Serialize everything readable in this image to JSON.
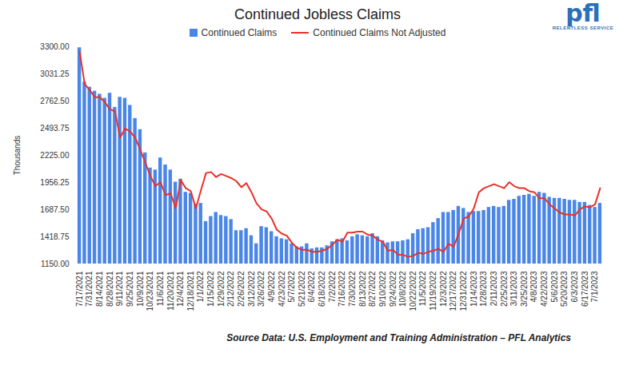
{
  "chart_data": {
    "type": "bar",
    "title": "Continued Jobless Claims",
    "y_label": "Thousands",
    "caption": "Source Data: U.S. Employment and Training Administration – PFL Analytics",
    "logo": "pfl",
    "logo_tagline": "RELENTLESS SERVICE",
    "legend": "top",
    "grid": false,
    "categories": [
      "7/17/2021",
      null,
      "7/31/2021",
      null,
      "8/14/2021",
      null,
      "8/28/2021",
      null,
      "9/11/2021",
      null,
      "9/25/2021",
      null,
      "10/9/2021",
      null,
      "10/23/2021",
      null,
      "11/6/2021",
      null,
      "11/20/2021",
      null,
      "12/4/2021",
      null,
      "12/18/2021",
      null,
      "1/1/2022",
      null,
      "1/15/2022",
      null,
      "1/29/2022",
      null,
      "2/12/2022",
      null,
      "2/26/2022",
      null,
      "3/12/2022",
      null,
      "3/26/2022",
      null,
      "4/9/2022",
      null,
      "4/23/2022",
      null,
      "5/7/2022",
      null,
      "5/21/2022",
      null,
      "6/4/2022",
      null,
      "6/18/2022",
      null,
      "7/2/2022",
      null,
      "7/16/2022",
      null,
      "7/30/2022",
      null,
      "8/13/2022",
      null,
      "8/27/2022",
      null,
      "9/10/2022",
      null,
      "9/24/2022",
      null,
      "10/8/2022",
      null,
      "10/22/2022",
      null,
      "11/5/2022",
      null,
      "11/19/2022",
      null,
      "12/3/2022",
      null,
      "12/17/2022",
      null,
      "12/31/2022",
      null,
      "1/14/2023",
      null,
      "1/28/2023",
      null,
      "2/11/2023",
      null,
      "2/25/2023",
      null,
      "3/11/2023",
      null,
      "3/25/2023",
      null,
      "4/8/2023",
      null,
      "4/22/2023",
      null,
      "5/6/2023",
      null,
      "5/20/2023",
      null,
      "6/3/2023",
      null,
      "6/17/2023",
      null,
      "7/1/2023",
      null
    ],
    "series": [
      {
        "name": "Continued Claims",
        "color": "#4a86e8",
        "type": "bar",
        "values": [
          3290,
          2950,
          2900,
          2860,
          2830,
          2790,
          2840,
          2700,
          2800,
          2790,
          2720,
          2590,
          2480,
          2250,
          2100,
          2080,
          2200,
          2130,
          2080,
          1960,
          1990,
          1860,
          1850,
          1740,
          1750,
          1570,
          1620,
          1660,
          1630,
          1620,
          1590,
          1480,
          1480,
          1500,
          1430,
          1350,
          1520,
          1510,
          1470,
          1420,
          1400,
          1390,
          1350,
          1320,
          1320,
          1350,
          1300,
          1310,
          1310,
          1330,
          1370,
          1390,
          1400,
          1380,
          1420,
          1440,
          1430,
          1420,
          1450,
          1420,
          1380,
          1360,
          1370,
          1370,
          1380,
          1390,
          1450,
          1490,
          1500,
          1510,
          1560,
          1600,
          1660,
          1660,
          1680,
          1720,
          1700,
          1660,
          1670,
          1670,
          1680,
          1710,
          1720,
          1710,
          1720,
          1780,
          1790,
          1820,
          1830,
          1840,
          1820,
          1860,
          1850,
          1810,
          1800,
          1800,
          1790,
          1780,
          1780,
          1760,
          1760,
          1730,
          1710,
          1750
        ]
      },
      {
        "name": "Continued Claims Not Adjusted",
        "color": "#e8312a",
        "type": "line",
        "values": [
          3250,
          2930,
          2870,
          2800,
          2800,
          2750,
          2680,
          2660,
          2400,
          2490,
          2460,
          2400,
          2280,
          2150,
          2020,
          1920,
          1960,
          1830,
          1850,
          1700,
          1980,
          1900,
          1870,
          1700,
          1880,
          2050,
          2060,
          2010,
          2040,
          2020,
          2000,
          1970,
          1910,
          1950,
          1860,
          1750,
          1690,
          1670,
          1600,
          1490,
          1450,
          1430,
          1360,
          1310,
          1290,
          1290,
          1270,
          1270,
          1280,
          1300,
          1340,
          1390,
          1370,
          1460,
          1460,
          1470,
          1470,
          1440,
          1430,
          1390,
          1370,
          1280,
          1290,
          1240,
          1240,
          1220,
          1230,
          1260,
          1250,
          1270,
          1280,
          1300,
          1270,
          1350,
          1320,
          1450,
          1600,
          1620,
          1700,
          1860,
          1900,
          1920,
          1940,
          1920,
          1900,
          1960,
          1920,
          1900,
          1900,
          1870,
          1860,
          1800,
          1800,
          1740,
          1700,
          1660,
          1640,
          1640,
          1630,
          1690,
          1720,
          1710,
          1740,
          1900
        ]
      }
    ],
    "ylim": [
      1150,
      3300
    ],
    "yticks": [
      {
        "value": 1150,
        "label": "1150.00"
      },
      {
        "value": 1418.75,
        "label": "1418.75"
      },
      {
        "value": 1687.5,
        "label": "1687.50"
      },
      {
        "value": 1956.25,
        "label": "1956.25"
      },
      {
        "value": 2225,
        "label": "2225.00"
      },
      {
        "value": 2493.75,
        "label": "2493.75"
      },
      {
        "value": 2762.5,
        "label": "2762.50"
      },
      {
        "value": 3031.25,
        "label": "3031.25"
      },
      {
        "value": 3300,
        "label": "3300.00"
      }
    ]
  }
}
